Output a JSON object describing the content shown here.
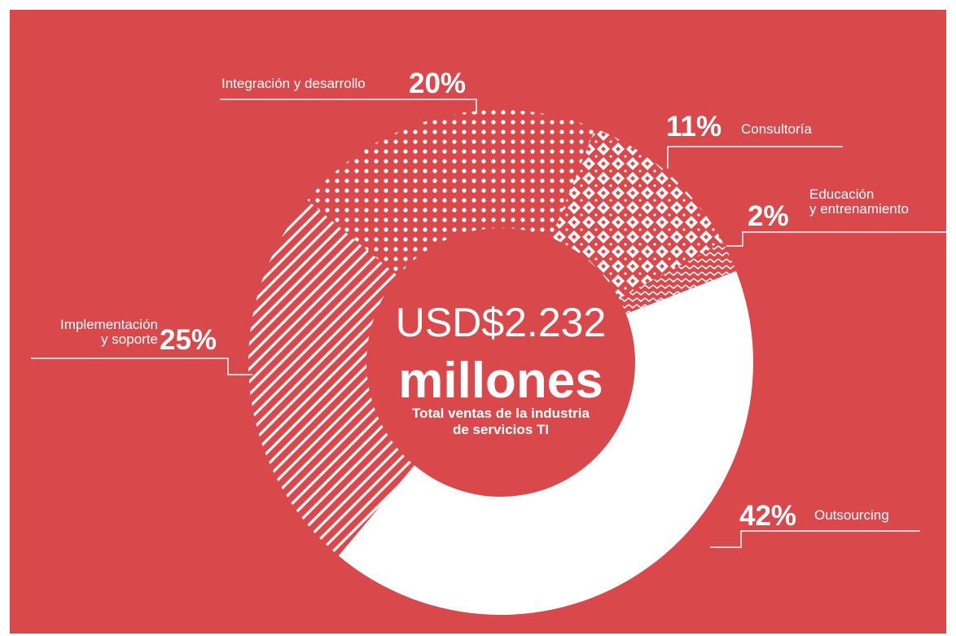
{
  "chart_data": {
    "type": "donut",
    "categories": [
      "Integración y desarrollo",
      "Consultoría",
      "Educación\ny entrenamiento",
      "Outsourcing",
      "Implementación\ny soporte"
    ],
    "values": [
      20,
      11,
      2,
      42,
      25
    ],
    "value_labels": [
      "20%",
      "11%",
      "2%",
      "42%",
      "25%"
    ],
    "fills": [
      "dots",
      "diamonds",
      "zigzag",
      "solid",
      "stripes"
    ],
    "color": "#ffffff",
    "background": "#d9484b",
    "center_title": "USD$2.232",
    "center_unit": "millones",
    "center_subtitle": "Total ventas de la industria\nde servicios TI"
  }
}
